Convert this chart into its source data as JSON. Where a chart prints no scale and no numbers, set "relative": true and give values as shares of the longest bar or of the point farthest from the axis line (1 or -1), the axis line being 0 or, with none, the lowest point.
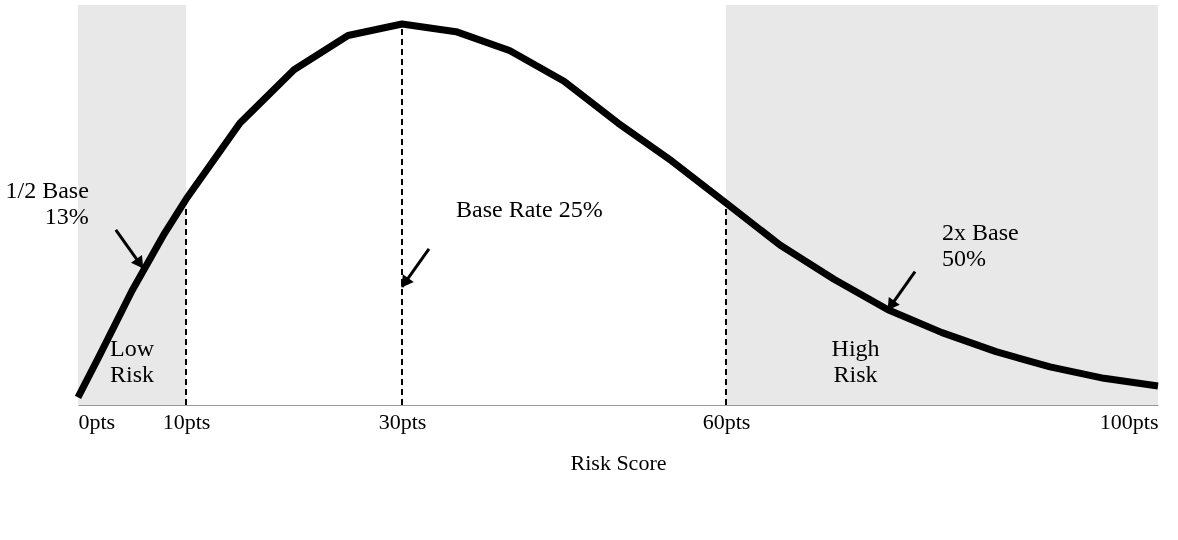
{
  "chart_data": {
    "type": "line",
    "relative": true,
    "xlabel": "Risk Score",
    "x": [
      0,
      2,
      5,
      8,
      10,
      15,
      20,
      25,
      30,
      35,
      40,
      45,
      50,
      55,
      60,
      65,
      70,
      75,
      80,
      85,
      90,
      95,
      100
    ],
    "series": [
      {
        "color": "#000000",
        "values": [
          0.02,
          0.13,
          0.3,
          0.45,
          0.54,
          0.74,
          0.88,
          0.97,
          1.0,
          0.98,
          0.93,
          0.85,
          0.74,
          0.64,
          0.53,
          0.42,
          0.33,
          0.25,
          0.19,
          0.14,
          0.1,
          0.07,
          0.05
        ]
      }
    ],
    "xlim": [
      0,
      100
    ],
    "xticks": [
      {
        "value": 0,
        "label": "0pts"
      },
      {
        "value": 10,
        "label": "10pts"
      },
      {
        "value": 30,
        "label": "30pts"
      },
      {
        "value": 60,
        "label": "60pts"
      },
      {
        "value": 100,
        "label": "100pts"
      }
    ],
    "ref_lines": [
      {
        "axis": "x",
        "value": 10,
        "line_style": "dashed"
      },
      {
        "axis": "x",
        "value": 30,
        "line_style": "dashed",
        "label": "Base Rate 25%"
      },
      {
        "axis": "x",
        "value": 60,
        "line_style": "dashed"
      }
    ],
    "bands": [
      {
        "axis": "x",
        "from": 0,
        "to": 10,
        "label": "Low\nRisk",
        "color": "#d9d9d9"
      },
      {
        "axis": "x",
        "from": 60,
        "to": 100,
        "label": "High\nRisk",
        "color": "#d9d9d9"
      }
    ],
    "annotations": [
      {
        "text": "1/2 Base\n13%",
        "x": 6,
        "y": 0.36
      },
      {
        "text": "2x Base\n50%",
        "x": 75,
        "y": 0.25
      }
    ],
    "grid": false,
    "marker": "none",
    "line_style": "solid"
  }
}
